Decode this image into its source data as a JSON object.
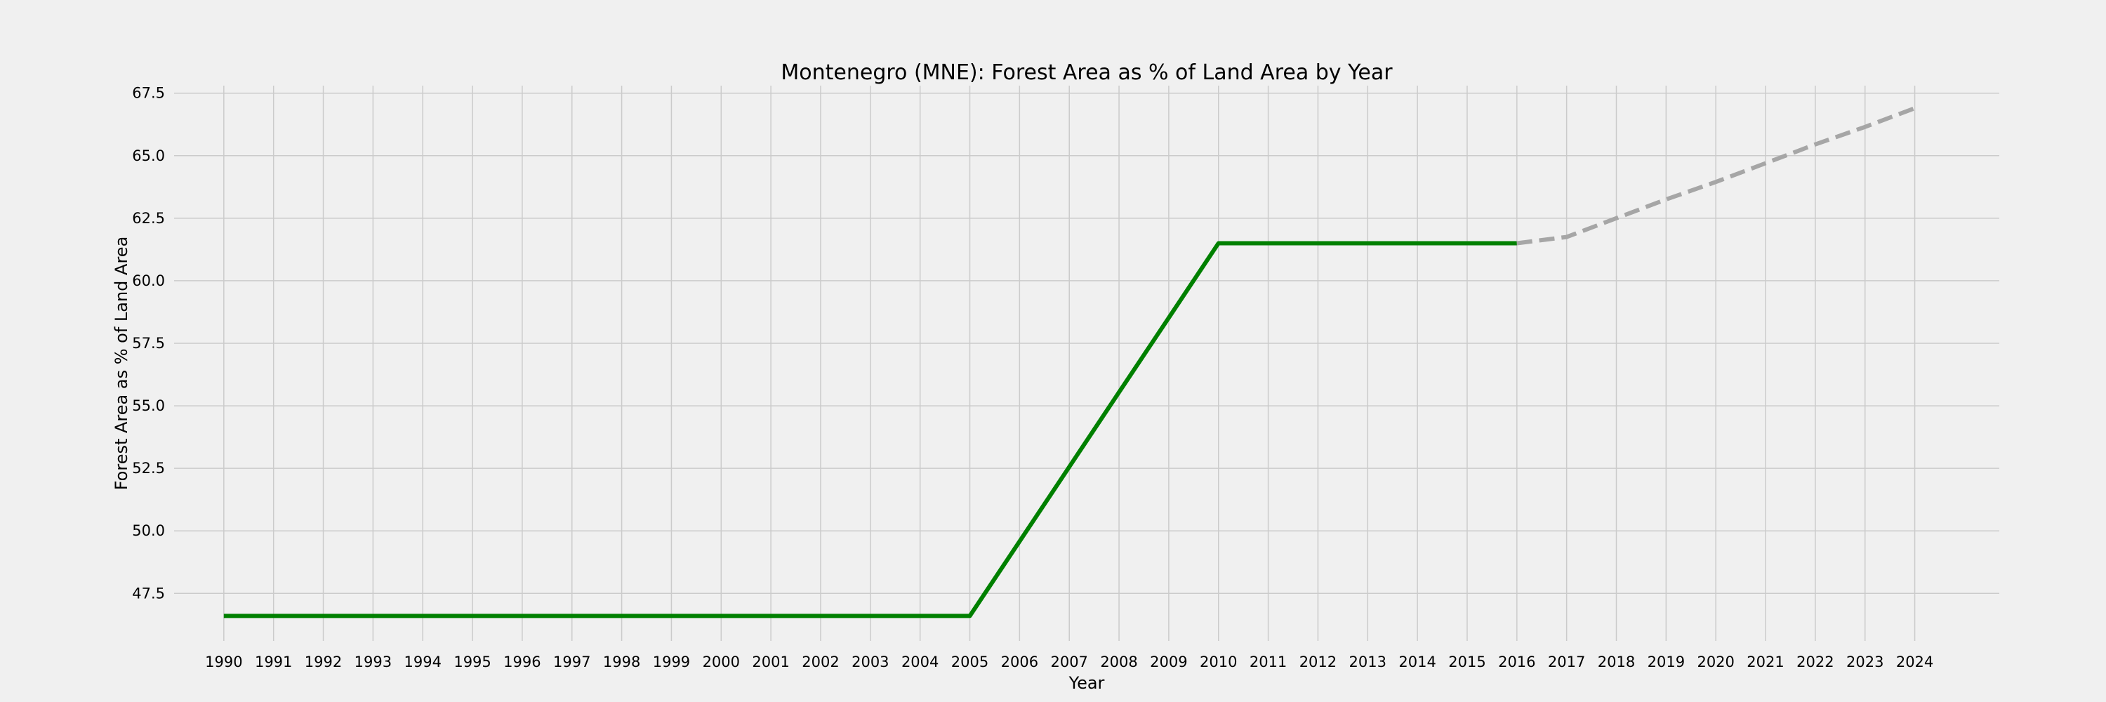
{
  "chart_data": {
    "type": "line",
    "title": "Montenegro (MNE): Forest Area as % of Land Area by Year",
    "xlabel": "Year",
    "ylabel": "Forest Area as % of Land Area",
    "xlim": [
      1989,
      2025.7
    ],
    "ylim": [
      45.6,
      67.8
    ],
    "grid": true,
    "x_ticks": [
      "1990",
      "1991",
      "1992",
      "1993",
      "1994",
      "1995",
      "1996",
      "1997",
      "1998",
      "1999",
      "2000",
      "2001",
      "2002",
      "2003",
      "2004",
      "2005",
      "2006",
      "2007",
      "2008",
      "2009",
      "2010",
      "2011",
      "2012",
      "2013",
      "2014",
      "2015",
      "2016",
      "2017",
      "2018",
      "2019",
      "2020",
      "2021",
      "2022",
      "2023",
      "2024"
    ],
    "y_ticks": [
      "47.5",
      "50.0",
      "52.5",
      "55.0",
      "57.5",
      "60.0",
      "62.5",
      "65.0",
      "67.5"
    ],
    "series": [
      {
        "style": "solid",
        "color": "#008000",
        "x": [
          1990,
          1991,
          1992,
          1993,
          1994,
          1995,
          1996,
          1997,
          1998,
          1999,
          2000,
          2001,
          2002,
          2003,
          2004,
          2005,
          2006,
          2007,
          2008,
          2009,
          2010,
          2011,
          2012,
          2013,
          2014,
          2015,
          2016
        ],
        "y": [
          46.6,
          46.6,
          46.6,
          46.6,
          46.6,
          46.6,
          46.6,
          46.6,
          46.6,
          46.6,
          46.6,
          46.6,
          46.6,
          46.6,
          46.6,
          46.6,
          49.58,
          52.56,
          55.54,
          58.52,
          61.5,
          61.5,
          61.5,
          61.5,
          61.5,
          61.5,
          61.5
        ]
      },
      {
        "style": "dashed",
        "color": "#a6a6a6",
        "x": [
          2016,
          2017,
          2018,
          2019,
          2020,
          2021,
          2022,
          2023,
          2024
        ],
        "y": [
          61.5,
          61.75,
          62.5,
          63.25,
          63.95,
          64.7,
          65.45,
          66.15,
          66.9
        ]
      }
    ]
  }
}
